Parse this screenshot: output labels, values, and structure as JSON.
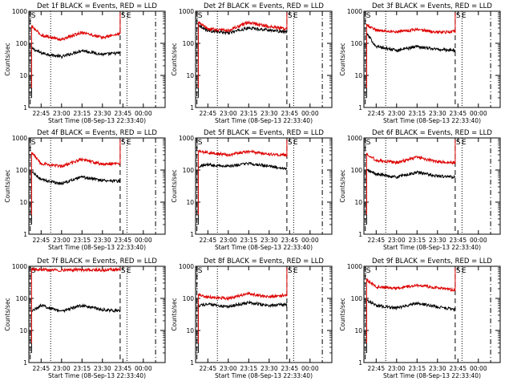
{
  "figure": {
    "y_axis_label": "Counts/sec",
    "x_axis_label": "Start Time (08-Sep-13 22:33:40)",
    "marker_s": "S",
    "marker_e": "E",
    "colors": {
      "events": "#000000",
      "lld": "#dd0000",
      "axes": "#000000"
    }
  },
  "chart_data": [
    {
      "type": "line",
      "title": "Det 1f BLACK = Events, RED = LLD",
      "yscale": "log",
      "ylim": [
        1,
        1000
      ],
      "ytick_labels": [
        "1",
        "10",
        "100",
        "1000"
      ],
      "xtick_labels": [
        "22:45",
        "23:00",
        "23:15",
        "23:30",
        "23:45",
        "00:00"
      ],
      "x": [
        "22:38",
        "22:45",
        "23:00",
        "23:15",
        "23:30",
        "23:43"
      ],
      "series": [
        {
          "name": "Events",
          "values": [
            70,
            50,
            38,
            60,
            45,
            50
          ]
        },
        {
          "name": "LLD",
          "values": [
            340,
            180,
            130,
            220,
            150,
            200
          ]
        }
      ]
    },
    {
      "type": "line",
      "title": "Det 2f BLACK = Events, RED = LLD",
      "yscale": "log",
      "ylim": [
        1,
        1000
      ],
      "ytick_labels": [
        "1",
        "10",
        "100",
        "1000"
      ],
      "xtick_labels": [
        "22:45",
        "23:00",
        "23:15",
        "23:30",
        "23:45",
        "00:00"
      ],
      "x": [
        "22:38",
        "22:45",
        "23:00",
        "23:15",
        "23:30",
        "23:43"
      ],
      "series": [
        {
          "name": "Events",
          "values": [
            380,
            250,
            210,
            300,
            260,
            220
          ]
        },
        {
          "name": "LLD",
          "values": [
            450,
            280,
            250,
            450,
            330,
            280
          ]
        }
      ]
    },
    {
      "type": "line",
      "title": "Det 3f BLACK = Events, RED = LLD",
      "yscale": "log",
      "ylim": [
        1,
        1000
      ],
      "ytick_labels": [
        "1",
        "10",
        "100",
        "1000"
      ],
      "xtick_labels": [
        "22:45",
        "23:00",
        "23:15",
        "23:30",
        "23:45",
        "00:00"
      ],
      "x": [
        "22:38",
        "22:45",
        "23:00",
        "23:15",
        "23:30",
        "23:43"
      ],
      "series": [
        {
          "name": "Events",
          "values": [
            200,
            80,
            60,
            80,
            65,
            60
          ]
        },
        {
          "name": "LLD",
          "values": [
            380,
            260,
            230,
            270,
            220,
            230
          ]
        }
      ]
    },
    {
      "type": "line",
      "title": "Det 4f BLACK = Events, RED = LLD",
      "yscale": "log",
      "ylim": [
        1,
        1000
      ],
      "ytick_labels": [
        "1",
        "10",
        "100",
        "1000"
      ],
      "xtick_labels": [
        "22:45",
        "23:00",
        "23:15",
        "23:30",
        "23:45",
        "00:00"
      ],
      "x": [
        "22:38",
        "22:45",
        "23:00",
        "23:15",
        "23:30",
        "23:43"
      ],
      "series": [
        {
          "name": "Events",
          "values": [
            90,
            50,
            38,
            60,
            48,
            45
          ]
        },
        {
          "name": "LLD",
          "values": [
            350,
            160,
            130,
            220,
            150,
            160
          ]
        }
      ]
    },
    {
      "type": "line",
      "title": "Det 5f BLACK = Events, RED = LLD",
      "yscale": "log",
      "ylim": [
        1,
        1000
      ],
      "ytick_labels": [
        "1",
        "10",
        "100",
        "1000"
      ],
      "xtick_labels": [
        "22:45",
        "23:00",
        "23:15",
        "23:30",
        "23:45",
        "00:00"
      ],
      "x": [
        "22:38",
        "22:45",
        "23:00",
        "23:15",
        "23:30",
        "23:43"
      ],
      "series": [
        {
          "name": "Events",
          "values": [
            130,
            150,
            130,
            160,
            130,
            110
          ]
        },
        {
          "name": "LLD",
          "values": [
            380,
            350,
            300,
            380,
            310,
            290
          ]
        }
      ]
    },
    {
      "type": "line",
      "title": "Det 6f BLACK = Events, RED = LLD",
      "yscale": "log",
      "ylim": [
        1,
        1000
      ],
      "ytick_labels": [
        "1",
        "10",
        "100",
        "1000"
      ],
      "xtick_labels": [
        "22:45",
        "23:00",
        "23:15",
        "23:30",
        "23:45",
        "00:00"
      ],
      "x": [
        "22:38",
        "22:45",
        "23:00",
        "23:15",
        "23:30",
        "23:43"
      ],
      "series": [
        {
          "name": "Events",
          "values": [
            100,
            75,
            60,
            85,
            65,
            60
          ]
        },
        {
          "name": "LLD",
          "values": [
            330,
            200,
            170,
            250,
            180,
            170
          ]
        }
      ]
    },
    {
      "type": "line",
      "title": "Det 7f BLACK = Events, RED = LLD",
      "yscale": "log",
      "ylim": [
        1,
        1000
      ],
      "ytick_labels": [
        "1",
        "10",
        "100",
        "1000"
      ],
      "xtick_labels": [
        "22:45",
        "23:00",
        "23:15",
        "23:30",
        "23:45",
        "00:00"
      ],
      "x": [
        "22:38",
        "22:45",
        "23:00",
        "23:15",
        "23:30",
        "23:43"
      ],
      "series": [
        {
          "name": "Events",
          "values": [
            40,
            60,
            40,
            60,
            45,
            40
          ]
        },
        {
          "name": "LLD",
          "values": [
            800,
            780,
            760,
            780,
            760,
            800
          ]
        }
      ]
    },
    {
      "type": "line",
      "title": "Det 8f BLACK = Events, RED = LLD",
      "yscale": "log",
      "ylim": [
        1,
        1000
      ],
      "ytick_labels": [
        "1",
        "10",
        "100",
        "1000"
      ],
      "xtick_labels": [
        "22:45",
        "23:00",
        "23:15",
        "23:30",
        "23:45",
        "00:00"
      ],
      "x": [
        "22:38",
        "22:45",
        "23:00",
        "23:15",
        "23:30",
        "23:43"
      ],
      "series": [
        {
          "name": "Events",
          "values": [
            60,
            65,
            55,
            75,
            60,
            65
          ]
        },
        {
          "name": "LLD",
          "values": [
            130,
            110,
            100,
            140,
            110,
            130
          ]
        }
      ]
    },
    {
      "type": "line",
      "title": "Det 9f BLACK = Events, RED = LLD",
      "yscale": "log",
      "ylim": [
        1,
        1000
      ],
      "ytick_labels": [
        "1",
        "10",
        "100",
        "1000"
      ],
      "xtick_labels": [
        "22:45",
        "23:00",
        "23:15",
        "23:30",
        "23:45",
        "00:00"
      ],
      "x": [
        "22:38",
        "22:45",
        "23:00",
        "23:15",
        "23:30",
        "23:43"
      ],
      "series": [
        {
          "name": "Events",
          "values": [
            90,
            60,
            50,
            70,
            55,
            45
          ]
        },
        {
          "name": "LLD",
          "values": [
            380,
            230,
            200,
            260,
            210,
            180
          ]
        }
      ]
    }
  ]
}
